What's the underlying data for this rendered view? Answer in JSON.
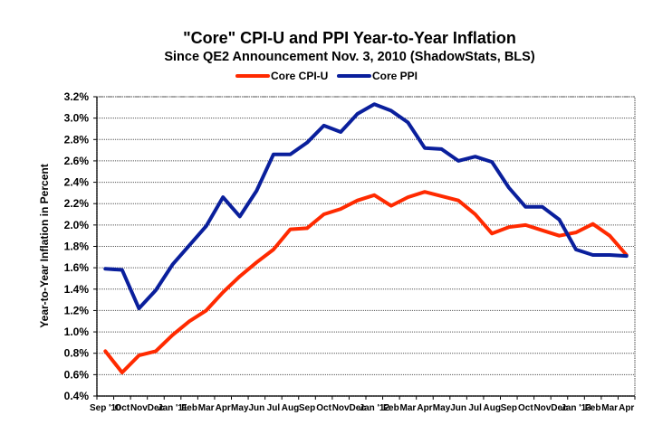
{
  "chart_data": {
    "type": "line",
    "title": "\"Core\" CPI-U and PPI Year-to-Year Inflation",
    "subtitle": "Since QE2 Announcement Nov. 3, 2010 (ShadowStats, BLS)",
    "xlabel": "",
    "ylabel": "Year-to-Year Inflation in Percent",
    "ylim": [
      0.4,
      3.2
    ],
    "ytick_step": 0.2,
    "ytick_labels": [
      "0.4%",
      "0.6%",
      "0.8%",
      "1.0%",
      "1.2%",
      "1.4%",
      "1.6%",
      "1.8%",
      "2.0%",
      "2.2%",
      "2.4%",
      "2.6%",
      "2.8%",
      "3.0%",
      "3.2%"
    ],
    "grid": true,
    "legend_position": "top-center",
    "categories": [
      "Sep '10",
      "Oct",
      "Nov",
      "Dec",
      "Jan '11",
      "Feb",
      "Mar",
      "Apr",
      "May",
      "Jun",
      "Jul",
      "Aug",
      "Sep",
      "Oct",
      "Nov",
      "Dec",
      "Jan '12",
      "Feb",
      "Mar",
      "Apr",
      "May",
      "Jun",
      "Jul",
      "Aug",
      "Sep",
      "Oct",
      "Nov",
      "Dec",
      "Jan '13",
      "Feb",
      "Mar",
      "Apr"
    ],
    "series": [
      {
        "name": "Core CPI-U",
        "color": "#ff2a00",
        "values": [
          0.82,
          0.62,
          0.78,
          0.82,
          0.97,
          1.1,
          1.2,
          1.37,
          1.52,
          1.65,
          1.77,
          1.96,
          1.97,
          2.1,
          2.15,
          2.23,
          2.28,
          2.18,
          2.26,
          2.31,
          2.27,
          2.23,
          2.1,
          1.92,
          1.98,
          2.0,
          1.95,
          1.9,
          1.93,
          2.01,
          1.9,
          1.72
        ]
      },
      {
        "name": "Core PPI",
        "color": "#0a1f9c",
        "values": [
          1.59,
          1.58,
          1.22,
          1.39,
          1.63,
          1.81,
          1.99,
          2.26,
          2.08,
          2.32,
          2.66,
          2.66,
          2.77,
          2.93,
          2.87,
          3.04,
          3.13,
          3.07,
          2.96,
          2.72,
          2.71,
          2.6,
          2.64,
          2.59,
          2.35,
          2.17,
          2.17,
          2.05,
          1.77,
          1.72,
          1.72,
          1.71
        ]
      }
    ]
  }
}
